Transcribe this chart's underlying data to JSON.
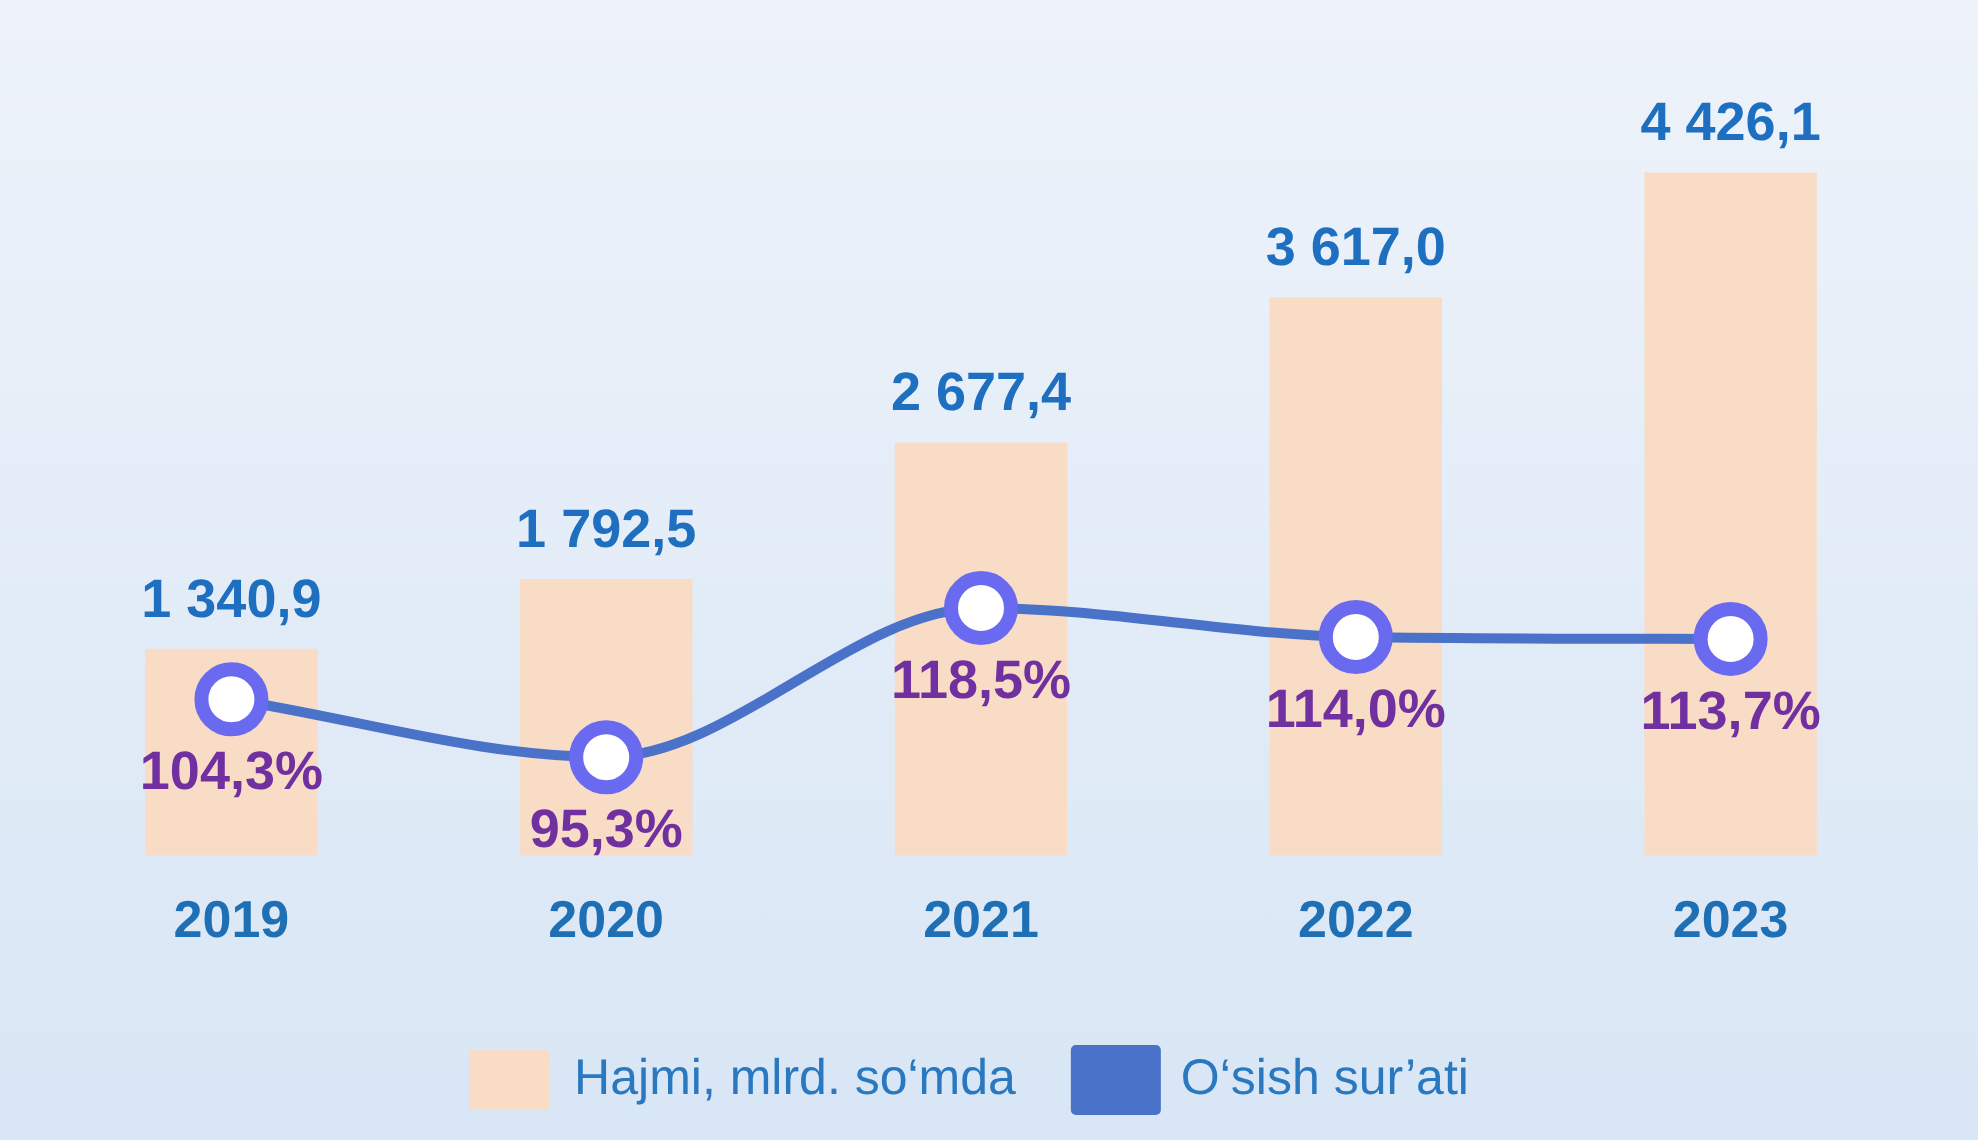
{
  "chart_data": {
    "type": "bar",
    "categories": [
      "2019",
      "2020",
      "2021",
      "2022",
      "2023"
    ],
    "series": [
      {
        "name": "Hajmi, mlrd. so‘mda",
        "color": "#f8dcc6",
        "values": [
          1340.9,
          1792.5,
          2677.4,
          3617.0,
          4426.1
        ],
        "value_labels": [
          "1 340,9",
          "1 792,5",
          "2 677,4",
          "3 617,0",
          "4 426,1"
        ]
      },
      {
        "name": "O‘sish sur’ati",
        "type": "line",
        "axis": "y2",
        "color": "#4a72c8",
        "values": [
          104.3,
          95.3,
          118.5,
          114.0,
          113.7
        ],
        "value_labels": [
          "104,3%",
          "95,3%",
          "118,5%",
          "114,0%",
          "113,7%"
        ]
      }
    ],
    "tick_labels": "x",
    "grid": false,
    "legend": "bottom",
    "marker": "circle",
    "line_style": "solid"
  }
}
